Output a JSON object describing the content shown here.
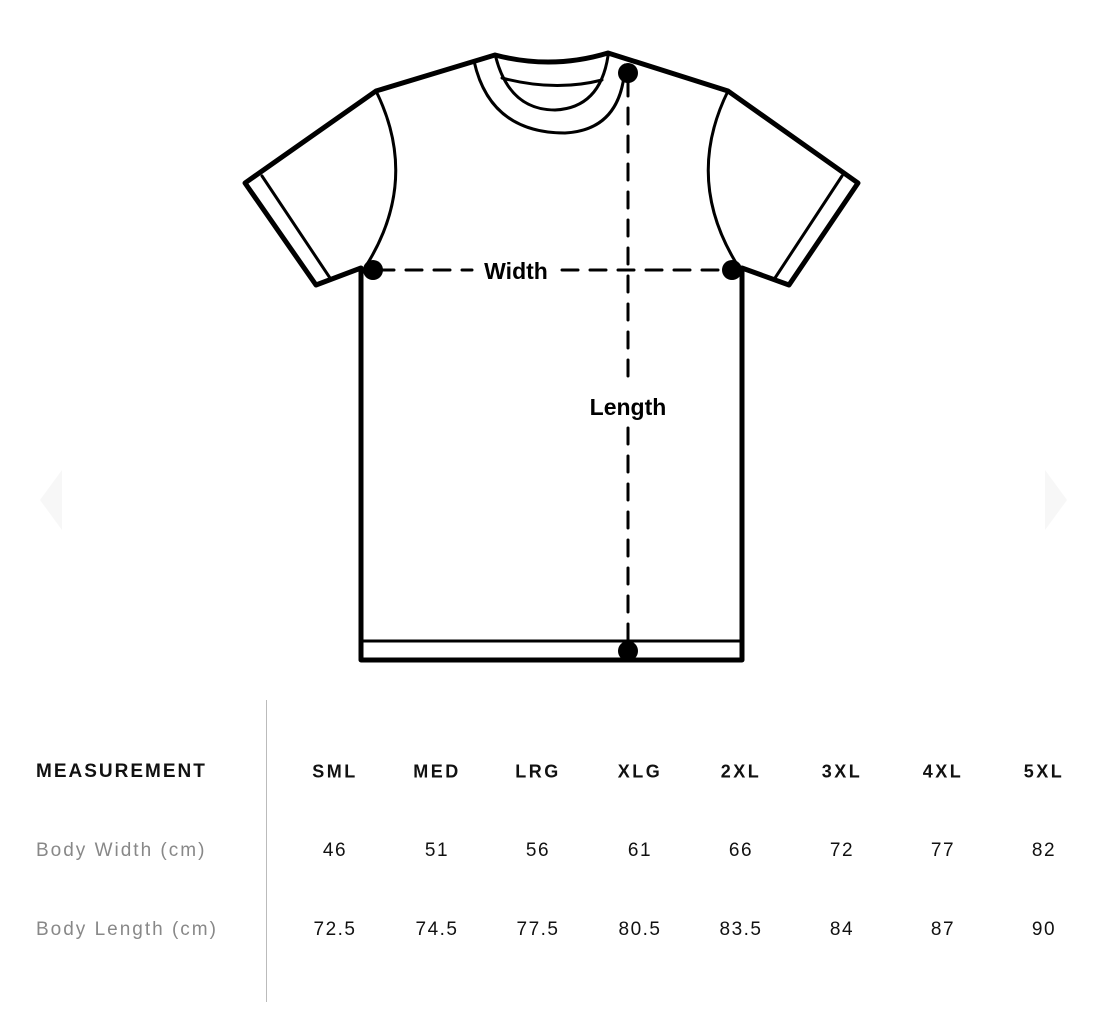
{
  "diagram": {
    "width_label": "Width",
    "length_label": "Length"
  },
  "table": {
    "header": "MEASUREMENT",
    "sizes": [
      "SML",
      "MED",
      "LRG",
      "XLG",
      "2XL",
      "3XL",
      "4XL",
      "5XL"
    ],
    "rows": [
      {
        "label": "Body Width (cm)",
        "values": [
          "46",
          "51",
          "56",
          "61",
          "66",
          "72",
          "77",
          "82"
        ]
      },
      {
        "label": "Body Length (cm)",
        "values": [
          "72.5",
          "74.5",
          "77.5",
          "80.5",
          "83.5",
          "84",
          "87",
          "90"
        ]
      }
    ]
  }
}
